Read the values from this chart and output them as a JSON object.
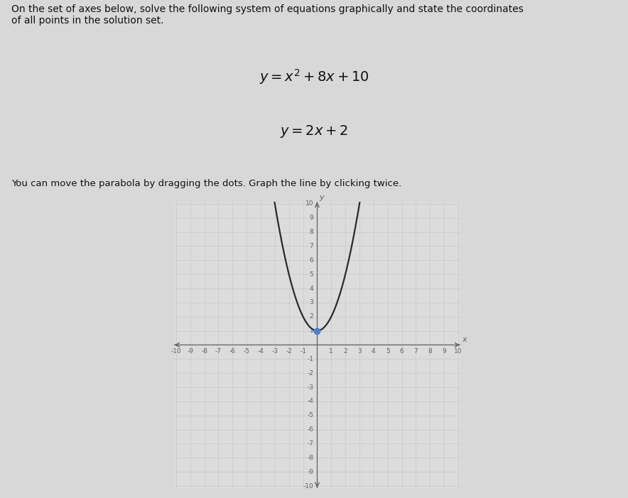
{
  "title_text": "On the set of axes below, solve the following system of equations graphically and state the coordinates\nof all points in the solution set.",
  "instruction": "You can move the parabola by dragging the dots. Graph the line by clicking twice.",
  "xmin": -10,
  "xmax": 10,
  "ymin": -10,
  "ymax": 10,
  "grid_color": "#c8c8c8",
  "axis_color": "#606060",
  "parabola_color": "#2a2a2a",
  "background_color": "#d8d8d8",
  "plot_bg_color": "#dcdcdc",
  "dot_color": "#4a7fd4",
  "dot_x": 0,
  "dot_y": 1,
  "parabola_vertex_x": 0,
  "parabola_vertex_y": 1,
  "parabola_a": 1,
  "text_color": "#111111",
  "font_size_title": 10,
  "font_size_eq": 14,
  "font_size_instruction": 9.5,
  "font_size_tick": 6.5,
  "font_size_axis_label": 8
}
